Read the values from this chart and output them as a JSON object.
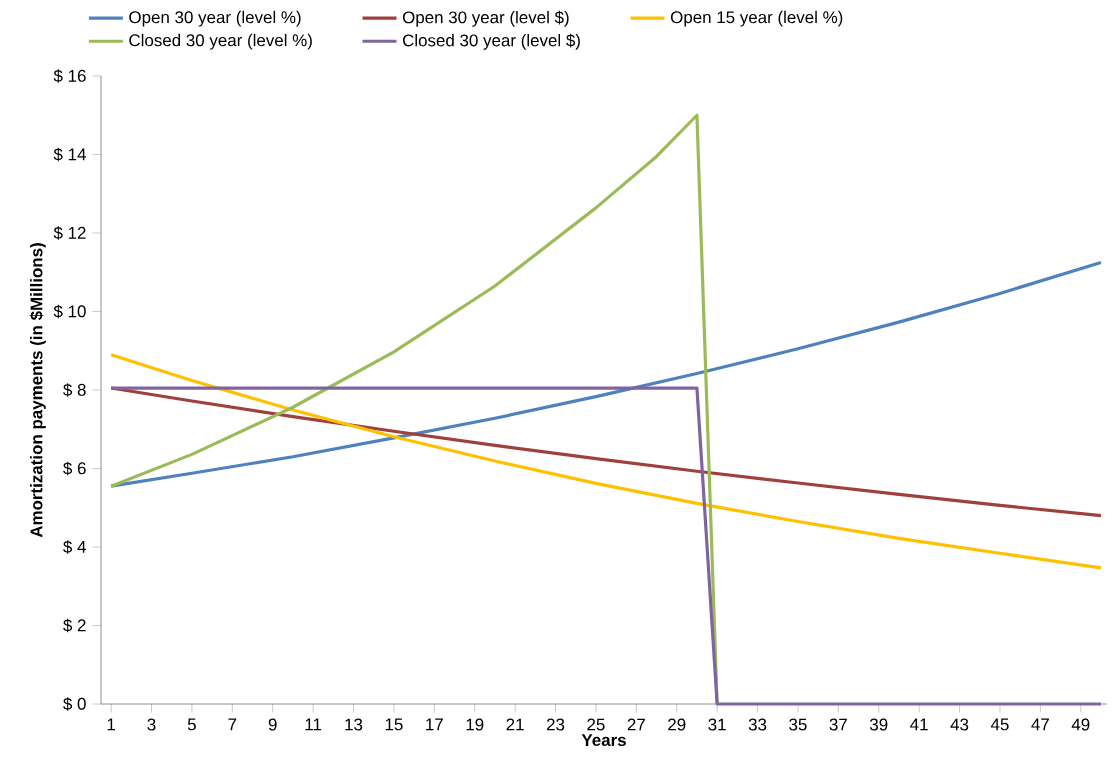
{
  "chart_data": {
    "type": "line",
    "xlabel": "Years",
    "ylabel": "Amortization payments (in $Millions)",
    "x": [
      1,
      5,
      10,
      15,
      20,
      25,
      30,
      35,
      40,
      45,
      50
    ],
    "xlim": [
      0.5,
      50.3
    ],
    "xticks": [
      1,
      3,
      5,
      7,
      9,
      11,
      13,
      15,
      17,
      19,
      21,
      23,
      25,
      27,
      29,
      31,
      33,
      35,
      37,
      39,
      41,
      43,
      45,
      47,
      49
    ],
    "ylim": [
      0,
      16
    ],
    "yticks": [
      {
        "value": 0,
        "label": "$ 0"
      },
      {
        "value": 2,
        "label": "$ 2"
      },
      {
        "value": 4,
        "label": "$ 4"
      },
      {
        "value": 6,
        "label": "$ 6"
      },
      {
        "value": 8,
        "label": "$ 8"
      },
      {
        "value": 10,
        "label": "$ 10"
      },
      {
        "value": 12,
        "label": "$ 12"
      },
      {
        "value": 14,
        "label": "$ 14"
      },
      {
        "value": 16,
        "label": "$ 16"
      }
    ],
    "grid": false,
    "legend": "top",
    "marker": "none",
    "line_style": "solid",
    "series": [
      {
        "name": "Open 30 year (level %)",
        "color": "#4f81bd",
        "values": [
          5.55,
          5.88,
          6.3,
          6.78,
          7.28,
          7.83,
          8.42,
          9.05,
          9.73,
          10.46,
          11.25
        ]
      },
      {
        "name": "Open 30 year (level $)",
        "color": "#a0403d",
        "values": [
          8.05,
          7.72,
          7.32,
          6.95,
          6.59,
          6.25,
          5.93,
          5.63,
          5.34,
          5.06,
          4.8
        ]
      },
      {
        "name": "Open 15 year (level %)",
        "color": "#ffc000",
        "values": [
          8.9,
          8.24,
          7.49,
          6.81,
          6.19,
          5.62,
          5.11,
          4.65,
          4.22,
          3.84,
          3.47
        ]
      },
      {
        "name": "Closed 30 year (level %)",
        "color": "#9bbb59",
        "x": [
          1,
          5,
          10,
          15,
          20,
          25,
          28,
          30,
          31
        ],
        "values": [
          5.55,
          6.36,
          7.56,
          8.97,
          10.65,
          12.64,
          13.95,
          15.0,
          0
        ]
      },
      {
        "name": "Closed 30 year (level $)",
        "color": "#8064a2",
        "x": [
          1,
          30,
          31,
          50
        ],
        "values": [
          8.05,
          8.05,
          0,
          0
        ]
      }
    ]
  }
}
